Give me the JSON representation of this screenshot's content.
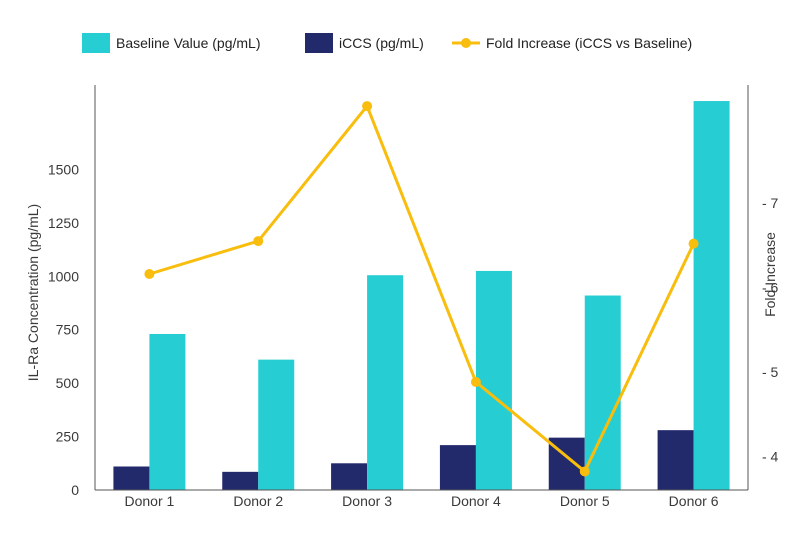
{
  "chart_data": {
    "type": "bar",
    "categories": [
      "Donor 1",
      "Donor 2",
      "Donor 3",
      "Donor 4",
      "Donor 5",
      "Donor 6"
    ],
    "series": [
      {
        "name": "Baseline Value (pg/mL)",
        "kind": "bar",
        "axis": "left",
        "color": "#26CED3",
        "values": [
          730,
          610,
          1005,
          1025,
          910,
          1820
        ]
      },
      {
        "name": "iCCS (pg/mL)",
        "kind": "bar",
        "axis": "left",
        "color": "#232A6B",
        "values": [
          110,
          85,
          125,
          210,
          245,
          280
        ]
      },
      {
        "name": "Fold Increase (iCCS vs Baseline)",
        "kind": "line",
        "axis": "right",
        "color": "#F8BD0D",
        "values": [
          6.16,
          6.55,
          8.15,
          4.88,
          3.82,
          6.52
        ]
      }
    ],
    "legend_order": [
      0,
      1,
      2
    ],
    "legend_position": "top",
    "ylabel": "IL-Ra Concentration (pg/mL)",
    "y2label": "Fold Increase",
    "ylim": [
      0,
      1895
    ],
    "yticks": [
      0,
      250,
      500,
      750,
      1000,
      1250,
      1500
    ],
    "y2lim": [
      3.6,
      8.4
    ],
    "y2ticks": [
      4,
      5,
      6,
      7
    ],
    "y2tick_prefix": "- ",
    "grid": false
  }
}
